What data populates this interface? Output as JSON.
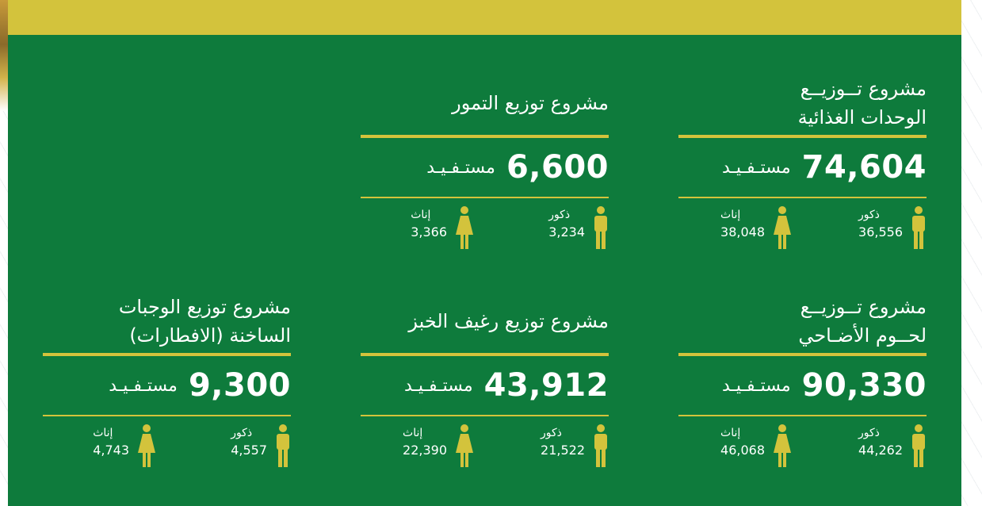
{
  "cards": [
    {
      "title": [
        "مشروع تــوزيــع",
        "الوحدات الغذائية"
      ],
      "count": "74,604",
      "count_label": "مستـفـيـد",
      "male_label": "ذكور",
      "male_value": "36,556",
      "female_label": "إناث",
      "female_value": "38,048"
    },
    {
      "title": [
        "مشروع توزيع التمور"
      ],
      "count": "6,600",
      "count_label": "مستـفـيـد",
      "male_label": "ذكور",
      "male_value": "3,234",
      "female_label": "إناث",
      "female_value": "3,366"
    },
    {
      "title": [
        "مشروع تــوزيــع",
        "لحــوم الأضـاحي"
      ],
      "count": "90,330",
      "count_label": "مستـفـيـد",
      "male_label": "ذكور",
      "male_value": "44,262",
      "female_label": "إناث",
      "female_value": "46,068"
    },
    {
      "title": [
        "مشروع توزيع رغيف الخبز"
      ],
      "count": "43,912",
      "count_label": "مستـفـيـد",
      "male_label": "ذكور",
      "male_value": "21,522",
      "female_label": "إناث",
      "female_value": "22,390"
    },
    {
      "title": [
        "مشروع توزيع الوجبات",
        "الساخنة (الافطارات)"
      ],
      "count": "9,300",
      "count_label": "مستـفـيـد",
      "male_label": "ذكور",
      "male_value": "4,557",
      "female_label": "إناث",
      "female_value": "4,743"
    }
  ]
}
